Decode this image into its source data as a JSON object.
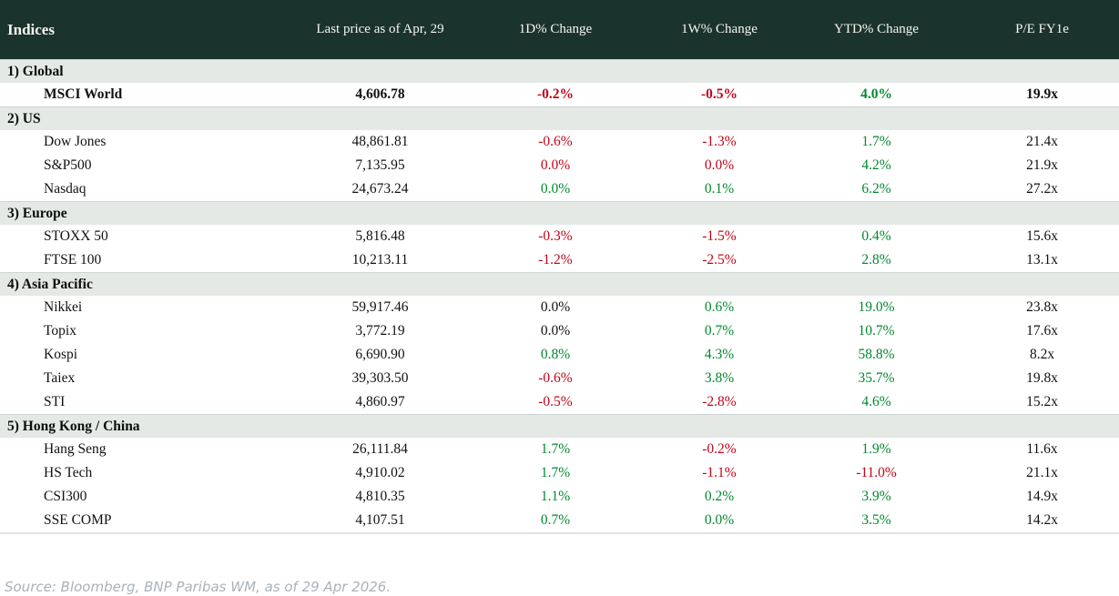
{
  "colors": {
    "header_bg": "#1b332d",
    "header_text": "#f7f6f0",
    "section_bg": "#e4e9e5",
    "positive": "#00892e",
    "negative": "#c00418",
    "neutral": "#111111"
  },
  "table": {
    "columns": [
      "Indices",
      "Last price as of Apr, 29",
      "1D% Change",
      "1W% Change",
      "YTD% Change",
      "P/E FY1e"
    ],
    "sections": [
      {
        "label": "1) Global",
        "rows": [
          {
            "name": "MSCI World",
            "bold": true,
            "price": "4,606.78",
            "d1": "-0.2%",
            "d1_c": "neg",
            "w1": "-0.5%",
            "w1_c": "neg",
            "ytd": "4.0%",
            "ytd_c": "pos",
            "pe": "19.9x"
          }
        ]
      },
      {
        "label": "2) US",
        "rows": [
          {
            "name": "Dow Jones",
            "bold": false,
            "price": "48,861.81",
            "d1": "-0.6%",
            "d1_c": "neg",
            "w1": "-1.3%",
            "w1_c": "neg",
            "ytd": "1.7%",
            "ytd_c": "pos",
            "pe": "21.4x"
          },
          {
            "name": "S&P500",
            "bold": false,
            "price": "7,135.95",
            "d1": "0.0%",
            "d1_c": "neg",
            "w1": "0.0%",
            "w1_c": "neg",
            "ytd": "4.2%",
            "ytd_c": "pos",
            "pe": "21.9x"
          },
          {
            "name": "Nasdaq",
            "bold": false,
            "price": "24,673.24",
            "d1": "0.0%",
            "d1_c": "pos",
            "w1": "0.1%",
            "w1_c": "pos",
            "ytd": "6.2%",
            "ytd_c": "pos",
            "pe": "27.2x"
          }
        ]
      },
      {
        "label": "3) Europe",
        "rows": [
          {
            "name": "STOXX 50",
            "bold": false,
            "price": "5,816.48",
            "d1": "-0.3%",
            "d1_c": "neg",
            "w1": "-1.5%",
            "w1_c": "neg",
            "ytd": "0.4%",
            "ytd_c": "pos",
            "pe": "15.6x"
          },
          {
            "name": "FTSE 100",
            "bold": false,
            "price": "10,213.11",
            "d1": "-1.2%",
            "d1_c": "neg",
            "w1": "-2.5%",
            "w1_c": "neg",
            "ytd": "2.8%",
            "ytd_c": "pos",
            "pe": "13.1x"
          }
        ]
      },
      {
        "label": "4) Asia Pacific",
        "rows": [
          {
            "name": "Nikkei",
            "bold": false,
            "price": "59,917.46",
            "d1": "0.0%",
            "d1_c": "flat",
            "w1": "0.6%",
            "w1_c": "pos",
            "ytd": "19.0%",
            "ytd_c": "pos",
            "pe": "23.8x"
          },
          {
            "name": "Topix",
            "bold": false,
            "price": "3,772.19",
            "d1": "0.0%",
            "d1_c": "flat",
            "w1": "0.7%",
            "w1_c": "pos",
            "ytd": "10.7%",
            "ytd_c": "pos",
            "pe": "17.6x"
          },
          {
            "name": "Kospi",
            "bold": false,
            "price": "6,690.90",
            "d1": "0.8%",
            "d1_c": "pos",
            "w1": "4.3%",
            "w1_c": "pos",
            "ytd": "58.8%",
            "ytd_c": "pos",
            "pe": "8.2x"
          },
          {
            "name": "Taiex",
            "bold": false,
            "price": "39,303.50",
            "d1": "-0.6%",
            "d1_c": "neg",
            "w1": "3.8%",
            "w1_c": "pos",
            "ytd": "35.7%",
            "ytd_c": "pos",
            "pe": "19.8x"
          },
          {
            "name": "STI",
            "bold": false,
            "price": "4,860.97",
            "d1": "-0.5%",
            "d1_c": "neg",
            "w1": "-2.8%",
            "w1_c": "neg",
            "ytd": "4.6%",
            "ytd_c": "pos",
            "pe": "15.2x"
          }
        ]
      },
      {
        "label": "5) Hong Kong / China",
        "rows": [
          {
            "name": "Hang Seng",
            "bold": false,
            "price": "26,111.84",
            "d1": "1.7%",
            "d1_c": "pos",
            "w1": "-0.2%",
            "w1_c": "neg",
            "ytd": "1.9%",
            "ytd_c": "pos",
            "pe": "11.6x"
          },
          {
            "name": "HS Tech",
            "bold": false,
            "price": "4,910.02",
            "d1": "1.7%",
            "d1_c": "pos",
            "w1": "-1.1%",
            "w1_c": "neg",
            "ytd": "-11.0%",
            "ytd_c": "neg",
            "pe": "21.1x"
          },
          {
            "name": "CSI300",
            "bold": false,
            "price": "4,810.35",
            "d1": "1.1%",
            "d1_c": "pos",
            "w1": "0.2%",
            "w1_c": "pos",
            "ytd": "3.9%",
            "ytd_c": "pos",
            "pe": "14.9x"
          },
          {
            "name": "SSE COMP",
            "bold": false,
            "price": "4,107.51",
            "d1": "0.7%",
            "d1_c": "pos",
            "w1": "0.0%",
            "w1_c": "pos",
            "ytd": "3.5%",
            "ytd_c": "pos",
            "pe": "14.2x"
          }
        ]
      }
    ]
  },
  "footer": {
    "source": "Source: Bloomberg, BNP Paribas WM, as of 29 Apr 2026."
  }
}
